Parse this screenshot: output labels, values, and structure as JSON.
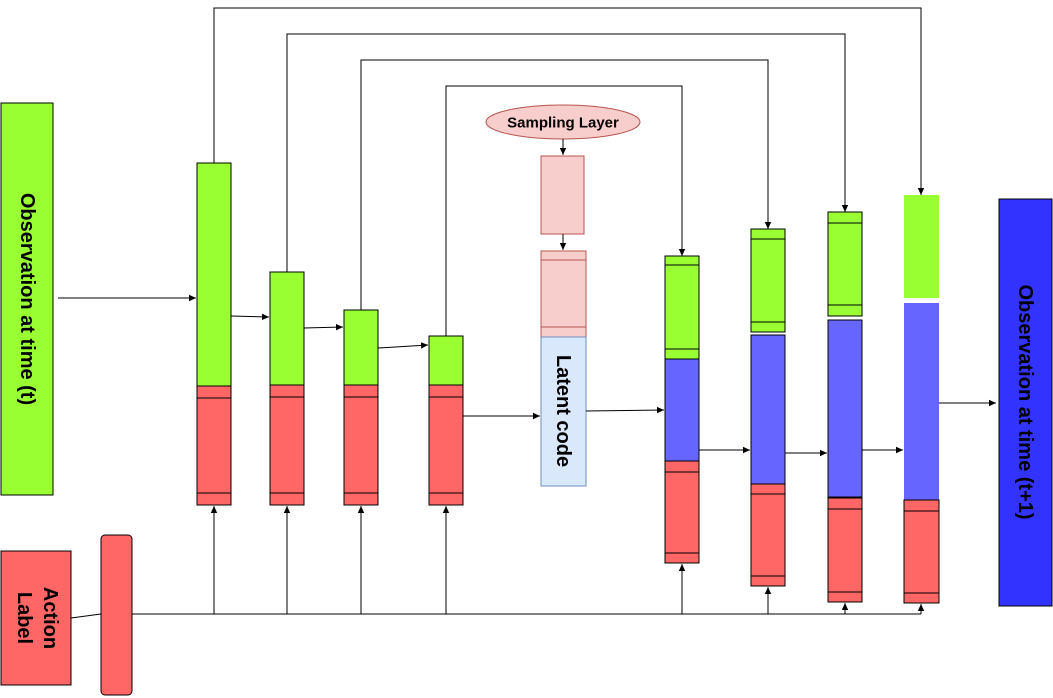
{
  "labels": {
    "observation_t": "Observation at time (t)",
    "observation_t1": "Observation at time (t+1)",
    "action_label_line1": "Action",
    "action_label_line2": "Label",
    "sampling_layer": "Sampling Layer",
    "latent_code": "Latent code"
  },
  "colors": {
    "green": "#99ff33",
    "red": "#ff6666",
    "blue": "#6666ff",
    "dark_blue": "#3333ff",
    "pink": "#f8cecc",
    "pink_stroke": "#b85450",
    "latent_fill": "#dae8fc",
    "latent_stroke": "#6c8ebf"
  }
}
